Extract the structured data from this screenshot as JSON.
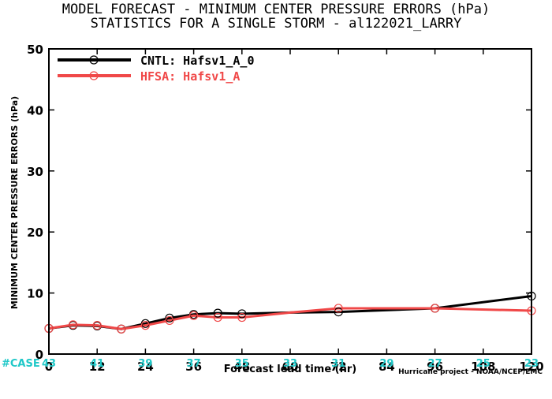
{
  "chart_data": {
    "type": "line",
    "title": "MODEL FORECAST - MINIMUM CENTER PRESSURE ERRORS (hPa)",
    "subtitle": "STATISTICS FOR A SINGLE STORM - al122021_LARRY",
    "xlabel": "Forecast lead time (hr)",
    "ylabel": "MINIMUM CENTER PRESSURE ERRORS (hPa)",
    "xlim": [
      0,
      120
    ],
    "ylim": [
      0,
      50
    ],
    "x_ticks": [
      "0",
      "12",
      "24",
      "36",
      "48",
      "60",
      "72",
      "84",
      "96",
      "108",
      "120"
    ],
    "y_ticks": [
      "0",
      "10",
      "20",
      "30",
      "40",
      "50"
    ],
    "grid": false,
    "legend_position": "top-left",
    "x": [
      0,
      6,
      12,
      18,
      24,
      30,
      36,
      42,
      48,
      60,
      72,
      96,
      120
    ],
    "series": [
      {
        "name": "CNTL: Hafsv1_A_0",
        "color": "#000000",
        "marker_x": [
          0,
          6,
          12,
          18,
          24,
          30,
          36,
          42,
          48,
          72,
          96,
          120
        ],
        "values": [
          4.2,
          4.7,
          4.6,
          4.1,
          5.0,
          5.9,
          6.5,
          6.7,
          6.6,
          6.8,
          6.9,
          7.5,
          9.5
        ]
      },
      {
        "name": "HFSA: Hafsv1_A",
        "color": "#f04848",
        "marker_x": [
          0,
          6,
          12,
          18,
          24,
          30,
          36,
          42,
          48,
          72,
          96,
          120
        ],
        "values": [
          4.2,
          4.8,
          4.7,
          4.1,
          4.7,
          5.5,
          6.3,
          6.0,
          6.0,
          6.8,
          7.5,
          7.5,
          7.1
        ]
      }
    ],
    "case_label": "#CASE",
    "case_color": "#20c8c8",
    "case_counts": [
      "43",
      "41",
      "39",
      "37",
      "35",
      "33",
      "31",
      "29",
      "27",
      "25",
      "23"
    ],
    "credit": "Hurricane project - NOAA/NCEP/EMC"
  }
}
